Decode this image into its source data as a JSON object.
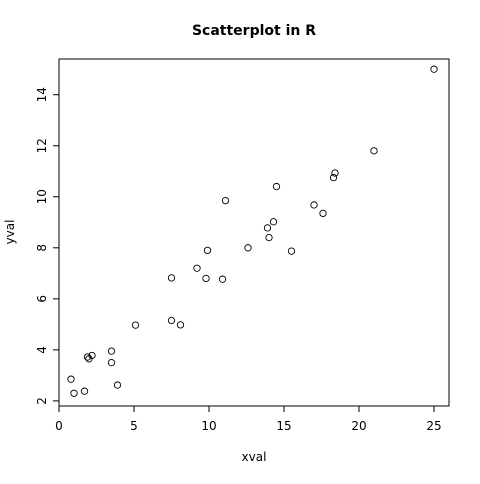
{
  "chart_data": {
    "type": "scatter",
    "title": "Scatterplot in R",
    "xlabel": "xval",
    "ylabel": "yval",
    "xlim": [
      -0.0,
      26.0
    ],
    "ylim": [
      1.8,
      15.4
    ],
    "x_ticks": [
      0,
      5,
      10,
      15,
      20,
      25
    ],
    "y_ticks": [
      2,
      4,
      6,
      8,
      10,
      12,
      14
    ],
    "grid": false,
    "marker": "open-circle",
    "points": [
      {
        "x": 0.8,
        "y": 2.85
      },
      {
        "x": 1.0,
        "y": 2.3
      },
      {
        "x": 1.7,
        "y": 2.38
      },
      {
        "x": 1.9,
        "y": 3.72
      },
      {
        "x": 2.0,
        "y": 3.65
      },
      {
        "x": 2.2,
        "y": 3.78
      },
      {
        "x": 3.5,
        "y": 3.95
      },
      {
        "x": 3.5,
        "y": 3.5
      },
      {
        "x": 3.9,
        "y": 2.62
      },
      {
        "x": 5.1,
        "y": 4.97
      },
      {
        "x": 7.5,
        "y": 6.82
      },
      {
        "x": 7.5,
        "y": 5.15
      },
      {
        "x": 8.1,
        "y": 4.98
      },
      {
        "x": 9.2,
        "y": 7.2
      },
      {
        "x": 9.8,
        "y": 6.8
      },
      {
        "x": 9.9,
        "y": 7.9
      },
      {
        "x": 10.9,
        "y": 6.77
      },
      {
        "x": 11.1,
        "y": 9.85
      },
      {
        "x": 12.6,
        "y": 8.0
      },
      {
        "x": 13.9,
        "y": 8.78
      },
      {
        "x": 14.0,
        "y": 8.4
      },
      {
        "x": 14.3,
        "y": 9.02
      },
      {
        "x": 14.5,
        "y": 10.4
      },
      {
        "x": 15.5,
        "y": 7.87
      },
      {
        "x": 17.0,
        "y": 9.68
      },
      {
        "x": 17.6,
        "y": 9.35
      },
      {
        "x": 18.3,
        "y": 10.75
      },
      {
        "x": 18.4,
        "y": 10.93
      },
      {
        "x": 21.0,
        "y": 11.8
      },
      {
        "x": 25.0,
        "y": 15.0
      }
    ]
  }
}
